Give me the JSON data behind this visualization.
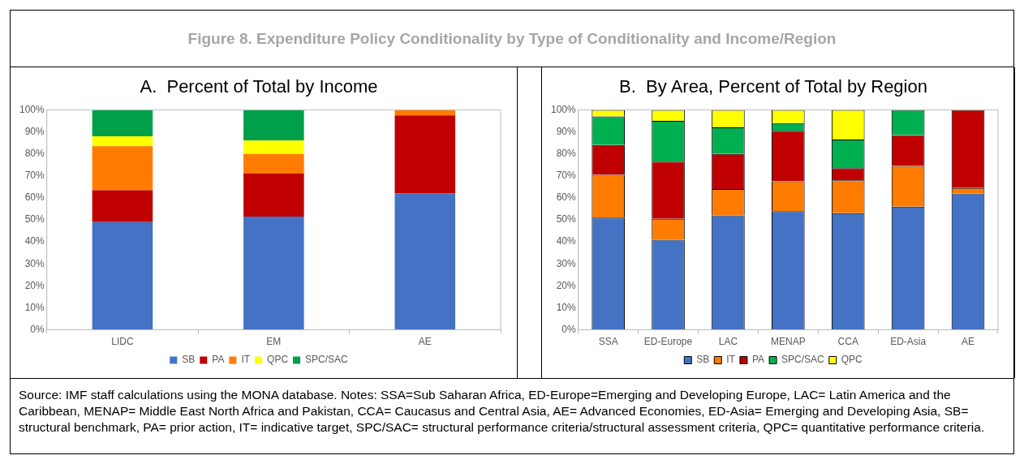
{
  "chart_data": [
    {
      "type": "other",
      "title": "Figure 8. Expenditure Policy Conditionality by Type of Conditionality and Income/Region"
    },
    {
      "type": "bar",
      "title": "A.  Percent of Total by Income",
      "categories": [
        "LIDC",
        "EM",
        "AE"
      ],
      "stacked": true,
      "grid": false,
      "legend": "bottom",
      "ylim": [
        0,
        100
      ],
      "yticks": [
        {
          "value": 0,
          "label": "0%"
        },
        {
          "value": 10,
          "label": "10%"
        },
        {
          "value": 20,
          "label": "20%"
        },
        {
          "value": 30,
          "label": "30%"
        },
        {
          "value": 40,
          "label": "40%"
        },
        {
          "value": 50,
          "label": "50%"
        },
        {
          "value": 60,
          "label": "60%"
        },
        {
          "value": 70,
          "label": "70%"
        },
        {
          "value": 80,
          "label": "80%"
        },
        {
          "value": 90,
          "label": "90%"
        },
        {
          "value": 100,
          "label": "100%"
        }
      ],
      "series": [
        {
          "name": "SB",
          "color": "#4472c4",
          "values": [
            49,
            51.5,
            62
          ]
        },
        {
          "name": "PA",
          "color": "#c00000",
          "values": [
            14.5,
            19.5,
            35.5
          ]
        },
        {
          "name": "IT",
          "color": "#ff7c00",
          "values": [
            20,
            9,
            2.5
          ]
        },
        {
          "name": "QPC",
          "color": "#ffff00",
          "values": [
            4.5,
            6,
            0
          ]
        },
        {
          "name": "SPC/SAC",
          "color": "#00a04a",
          "values": [
            12,
            14,
            0
          ]
        }
      ]
    },
    {
      "type": "bar",
      "title": "B.  By Area, Percent of Total by Region",
      "categories": [
        "SSA",
        "ED-Europe",
        "LAC",
        "MENAP",
        "CCA",
        "ED-Asia",
        "AE"
      ],
      "stacked": true,
      "grid": false,
      "legend": "bottom",
      "ylim": [
        0,
        100
      ],
      "yticks": [
        {
          "value": 0,
          "label": "0%"
        },
        {
          "value": 10,
          "label": "10%"
        },
        {
          "value": 20,
          "label": "20%"
        },
        {
          "value": 30,
          "label": "30%"
        },
        {
          "value": 40,
          "label": "40%"
        },
        {
          "value": 50,
          "label": "50%"
        },
        {
          "value": 60,
          "label": "60%"
        },
        {
          "value": 70,
          "label": "70%"
        },
        {
          "value": 80,
          "label": "80%"
        },
        {
          "value": 90,
          "label": "90%"
        },
        {
          "value": 100,
          "label": "100%"
        }
      ],
      "series": [
        {
          "name": "SB",
          "color": "#4472c4",
          "values": [
            51,
            41,
            52,
            54,
            53,
            56,
            62
          ]
        },
        {
          "name": "IT",
          "color": "#ff7c00",
          "values": [
            19.5,
            9.5,
            12,
            13.5,
            15,
            18.5,
            2.5
          ]
        },
        {
          "name": "PA",
          "color": "#c00000",
          "values": [
            13.5,
            26,
            16,
            23,
            5.5,
            14,
            35.5
          ]
        },
        {
          "name": "SPC/SAC",
          "color": "#00b050",
          "values": [
            13,
            18.5,
            12,
            3.5,
            13,
            11.5,
            0
          ]
        },
        {
          "name": "QPC",
          "color": "#ffff00",
          "values": [
            3,
            5,
            8,
            6,
            13.5,
            0,
            0
          ]
        }
      ]
    },
    {
      "type": "other",
      "annotations": [
        "Source: IMF staff calculations using the MONA database. Notes: SSA=Sub Saharan Africa, ED-Europe=Emerging and Developing Europe, LAC= Latin America and the Caribbean, MENAP= Middle East North Africa and Pakistan, CCA= Caucasus and Central Asia, AE= Advanced Economies, ED-Asia= Emerging and Developing Asia, SB= structural benchmark, PA= prior action, IT= indicative target, SPC/SAC= structural performance criteria/structural assessment criteria, QPC= quantitative performance criteria."
      ]
    }
  ]
}
